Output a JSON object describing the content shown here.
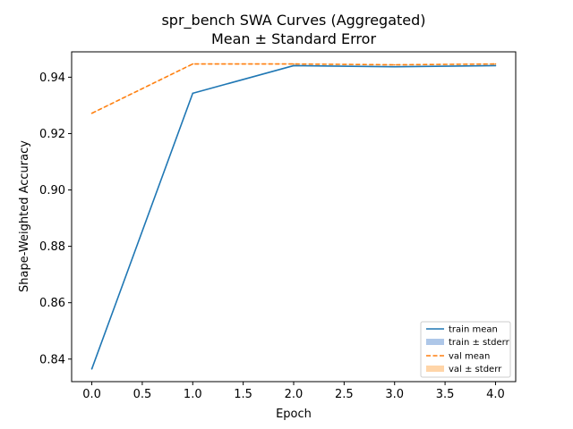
{
  "chart_data": {
    "type": "line",
    "title": "spr_bench SWA Curves (Aggregated)",
    "subtitle": "Mean ± Standard Error",
    "xlabel": "Epoch",
    "ylabel": "Shape-Weighted Accuracy",
    "xlim": [
      -0.2,
      4.2
    ],
    "ylim": [
      0.832,
      0.949
    ],
    "xticks": [
      0.0,
      0.5,
      1.0,
      1.5,
      2.0,
      2.5,
      3.0,
      3.5,
      4.0
    ],
    "xtick_labels": [
      "0.0",
      "0.5",
      "1.0",
      "1.5",
      "2.0",
      "2.5",
      "3.0",
      "3.5",
      "4.0"
    ],
    "yticks": [
      0.84,
      0.86,
      0.88,
      0.9,
      0.92,
      0.94
    ],
    "ytick_labels": [
      "0.84",
      "0.86",
      "0.88",
      "0.90",
      "0.92",
      "0.94"
    ],
    "grid": false,
    "legend_position": "lower-right",
    "x": [
      0,
      1,
      2,
      3,
      4
    ],
    "series": [
      {
        "name": "train mean",
        "band_name": "train ± stderr",
        "values": [
          0.8365,
          0.9343,
          0.9441,
          0.9437,
          0.9441
        ],
        "stderr": [
          0.0,
          0.0,
          0.0,
          0.0,
          0.0
        ],
        "color": "#1f77b4",
        "band_color": "#aec7e8",
        "dash": "solid"
      },
      {
        "name": "val mean",
        "band_name": "val ± stderr",
        "values": [
          0.9272,
          0.9447,
          0.9447,
          0.9444,
          0.9447
        ],
        "stderr": [
          0.0,
          0.0,
          0.0,
          0.0,
          0.0
        ],
        "color": "#ff7f0e",
        "band_color": "#ffd5a8",
        "dash": "dashed"
      }
    ]
  }
}
